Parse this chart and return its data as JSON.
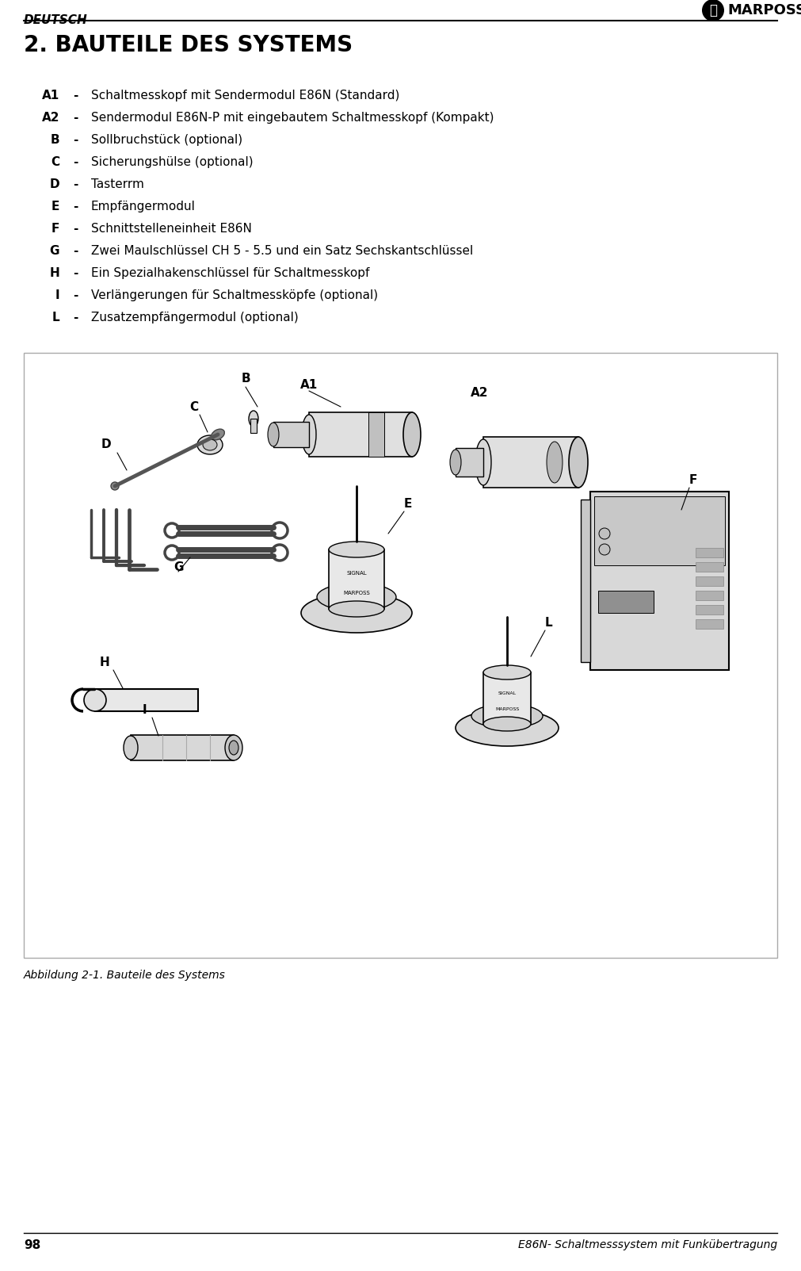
{
  "page_number": "98",
  "footer_text": "E86N- Schaltmesssystem mit Funkübertragung",
  "header_left": "DEUTSCH",
  "header_logo_text": "MARPOSS",
  "section_title": "2. BAUTEILE DES SYSTEMS",
  "items": [
    {
      "label": "A1",
      "dash": "-",
      "text": "Schaltmesskopf mit Sendermodul E86N (Standard)"
    },
    {
      "label": "A2",
      "dash": "-",
      "text": "Sendermodul E86N-P mit eingebautem Schaltmesskopf (Kompakt)"
    },
    {
      "label": "B",
      "dash": "-",
      "text": "Sollbruchstück (optional)"
    },
    {
      "label": "C",
      "dash": "-",
      "text": "Sicherungshülse (optional)"
    },
    {
      "label": "D",
      "dash": "-",
      "text": "Tasterrm"
    },
    {
      "label": "E",
      "dash": "-",
      "text": "Empfängermodul"
    },
    {
      "label": "F",
      "dash": "-",
      "text": "Schnittstelleneinheit E86N"
    },
    {
      "label": "G",
      "dash": "-",
      "text": "Zwei Maulschlüssel CH 5 - 5.5 und ein Satz Sechskantschlüssel"
    },
    {
      "label": "H",
      "dash": "-",
      "text": "Ein Spezialhakenschlüssel für Schaltmesskopf"
    },
    {
      "label": "I",
      "dash": "-",
      "text": "Verlängerungen für Schaltmessköpfe (optional)"
    },
    {
      "label": "L",
      "dash": "-",
      "text": "Zusatzempfängermodul (optional)"
    }
  ],
  "figure_caption": "Abbildung 2-1. Bauteile des Systems",
  "bg_color": "#ffffff",
  "text_color": "#000000",
  "header_line_color": "#000000",
  "box_line_color": "#aaaaaa"
}
